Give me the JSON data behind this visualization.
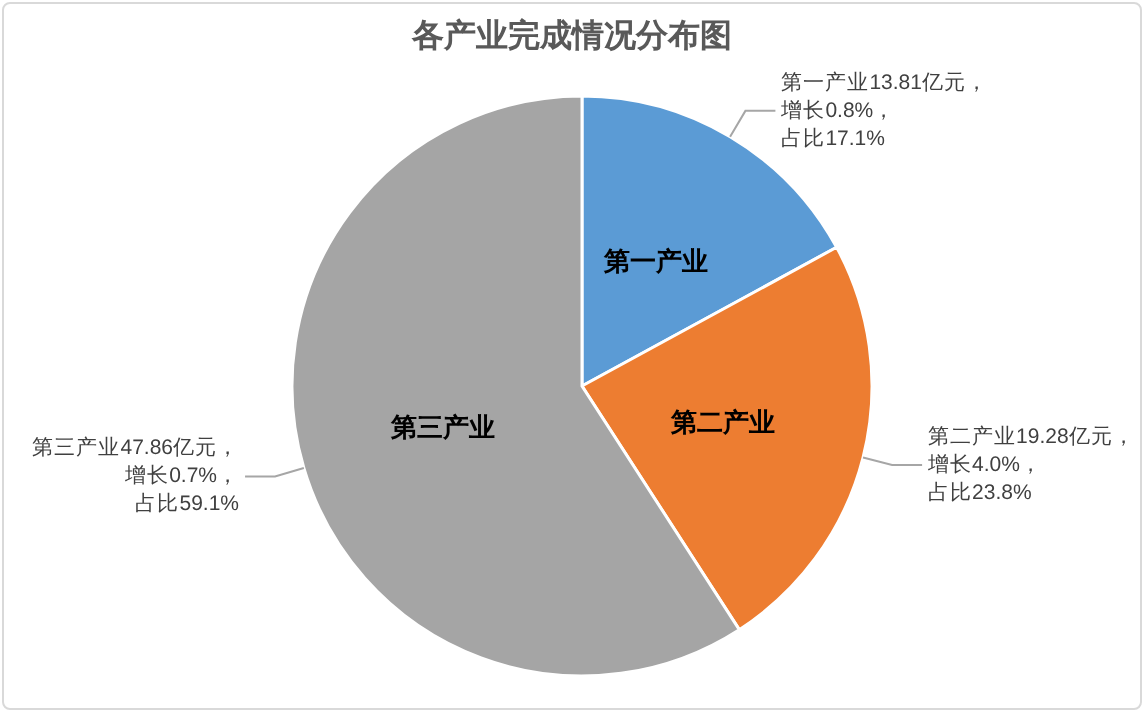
{
  "chart_data": {
    "type": "pie",
    "title": "各产业完成情况分布图",
    "categories": [
      "第一产业",
      "第二产业",
      "第三产业"
    ],
    "values": [
      13.81,
      19.28,
      47.86
    ],
    "colors": [
      "#5b9bd5",
      "#ed7d31",
      "#a5a5a5"
    ],
    "value_labels": [
      "第一产业13.81亿元，增长0.8%，占比17.1%",
      "第二产业19.28亿元，增长4.0%，占比23.8%",
      "第三产业47.86亿元，增长0.7%，占比59.1%"
    ]
  }
}
